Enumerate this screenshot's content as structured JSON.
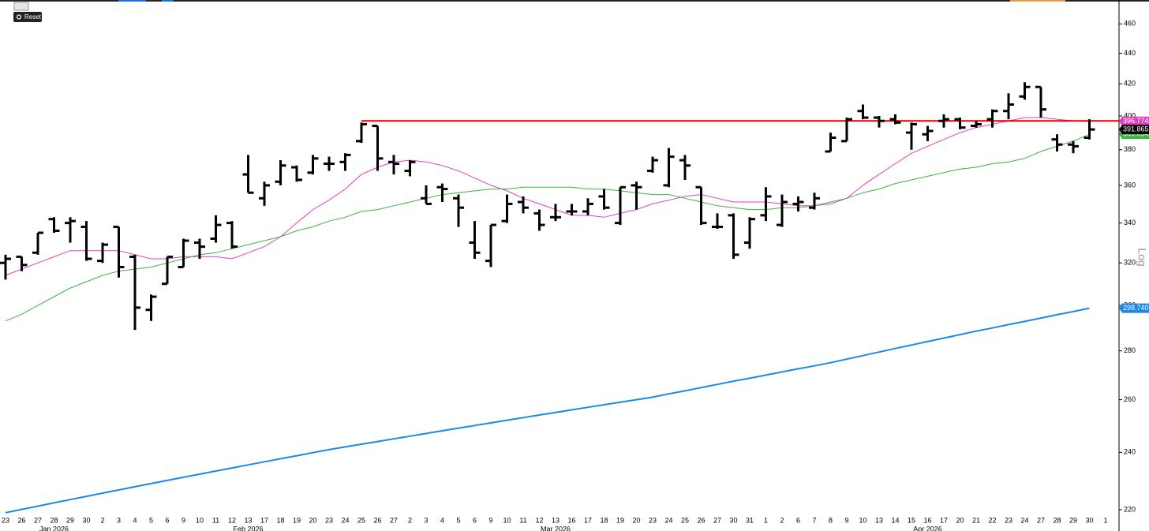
{
  "chart_data": {
    "type": "ohlc",
    "log_scale": true,
    "grid": false,
    "button": "Reset",
    "axis_note": "Log",
    "categories": [
      "23",
      "26",
      "27",
      "28",
      "29",
      "30",
      "2",
      "3",
      "4",
      "5",
      "6",
      "9",
      "10",
      "11",
      "12",
      "13",
      "17",
      "18",
      "19",
      "20",
      "23",
      "24",
      "25",
      "26",
      "27",
      "2",
      "3",
      "4",
      "5",
      "6",
      "9",
      "10",
      "11",
      "12",
      "13",
      "16",
      "17",
      "18",
      "19",
      "20",
      "23",
      "24",
      "25",
      "26",
      "27",
      "30",
      "31",
      "1",
      "2",
      "6",
      "7",
      "8",
      "9",
      "10",
      "13",
      "14",
      "15",
      "16",
      "17",
      "20",
      "21",
      "22",
      "23",
      "24",
      "27",
      "28",
      "29",
      "30",
      "1"
    ],
    "months": [
      {
        "label": "Jan 2026",
        "index": 3
      },
      {
        "label": "Feb 2026",
        "index": 15
      },
      {
        "label": "Mar 2026",
        "index": 34
      },
      {
        "label": "Apr 2026",
        "index": 57
      }
    ],
    "ylim": [
      213,
      477
    ],
    "yticks": [
      220,
      240,
      260,
      280,
      300,
      320,
      340,
      360,
      380,
      400,
      420,
      440,
      460
    ],
    "ohlc": {
      "color": "#000000",
      "open": [
        320,
        323,
        325,
        342,
        340,
        338,
        321,
        338,
        323,
        298,
        310,
        318,
        330,
        332,
        340,
        366,
        353,
        362,
        370,
        367,
        372,
        373,
        385,
        394,
        373,
        368,
        353,
        359,
        353,
        330,
        321,
        341,
        351,
        345,
        343,
        346,
        346,
        354,
        340,
        360,
        368,
        360,
        374,
        359,
        338,
        344,
        330,
        344,
        339,
        350,
        348,
        379,
        385,
        403,
        399,
        398,
        390,
        389,
        397,
        398,
        394,
        398,
        403,
        412,
        418,
        386,
        383,
        387,
        null
      ],
      "high": [
        324,
        323,
        335,
        343,
        343,
        341,
        330,
        338,
        324,
        305,
        323,
        332,
        332,
        344,
        341,
        377,
        362,
        374,
        371,
        377,
        376,
        378,
        396,
        394,
        377,
        374,
        360,
        361,
        355,
        341,
        339,
        355,
        354,
        347,
        350,
        350,
        353,
        358,
        359,
        362,
        376,
        381,
        377,
        359,
        345,
        345,
        343,
        359,
        355,
        354,
        356,
        390,
        399,
        407,
        400,
        401,
        396,
        394,
        401,
        399,
        397,
        404,
        414,
        421,
        418,
        389,
        385,
        398,
        null
      ],
      "low": [
        312,
        316,
        324,
        335,
        330,
        321,
        320,
        313,
        289,
        293,
        310,
        318,
        322,
        330,
        327,
        356,
        349,
        360,
        362,
        366,
        368,
        368,
        384,
        368,
        366,
        365,
        350,
        351,
        338,
        322,
        318,
        340,
        345,
        336,
        341,
        344,
        344,
        347,
        339,
        347,
        367,
        359,
        363,
        339,
        337,
        322,
        327,
        341,
        338,
        346,
        347,
        379,
        385,
        398,
        393,
        395,
        380,
        385,
        393,
        392,
        393,
        393,
        398,
        410,
        399,
        379,
        378,
        386,
        null
      ],
      "close": [
        322,
        319,
        335,
        336,
        341,
        322,
        329,
        318,
        299,
        304,
        323,
        331,
        328,
        339,
        328,
        356,
        360,
        371,
        363,
        375,
        372,
        377,
        395,
        375,
        372,
        373,
        350,
        358,
        348,
        325,
        339,
        350,
        348,
        339,
        343,
        346,
        350,
        348,
        359,
        359,
        374,
        376,
        371,
        340,
        338,
        324,
        342,
        354,
        351,
        351,
        353,
        387,
        398,
        399,
        397,
        396,
        395,
        391,
        398,
        393,
        395,
        403,
        407,
        418,
        404,
        383,
        382,
        391.865,
        null
      ],
      "last_label": "391.865"
    },
    "series": [
      {
        "name": "MA short",
        "color": "#e040c0",
        "width": 1,
        "last_label": "396.774",
        "values": [
          314,
          317,
          320,
          323,
          326,
          326,
          326,
          326,
          324,
          322,
          322,
          323,
          323,
          323,
          322,
          325,
          328,
          333,
          340,
          347,
          352,
          358,
          366,
          370,
          373,
          374,
          373,
          371,
          368,
          364,
          360,
          357,
          353,
          350,
          347,
          344,
          344,
          343,
          345,
          347,
          350,
          352,
          354,
          355,
          353,
          351,
          351,
          351,
          350,
          349,
          349,
          350,
          353,
          360,
          366,
          372,
          378,
          382,
          386,
          390,
          393,
          395,
          397,
          399,
          399,
          398,
          397,
          396.774,
          null
        ]
      },
      {
        "name": "MA mid",
        "color": "#3cb43c",
        "width": 1,
        "last_label": "389.034",
        "values": [
          293,
          296,
          300,
          304,
          308,
          311,
          314,
          316,
          317,
          318,
          320,
          322,
          324,
          325,
          327,
          329,
          331,
          333,
          336,
          338,
          341,
          343,
          346,
          347,
          349,
          351,
          353,
          355,
          356,
          357,
          358,
          358,
          359,
          359,
          359,
          359,
          358,
          358,
          357,
          356,
          355,
          355,
          353,
          351,
          349,
          348,
          347,
          347,
          348,
          348,
          349,
          351,
          353,
          356,
          358,
          361,
          363,
          365,
          367,
          369,
          370,
          372,
          373,
          375,
          379,
          382,
          385,
          389.034,
          null
        ]
      },
      {
        "name": "MA long",
        "color": "#1e88e5",
        "width": 2,
        "last_label": "298.7402",
        "values": [
          219,
          220.1,
          221.2,
          222.3,
          223.4,
          224.5,
          225.6,
          226.7,
          227.8,
          228.9,
          230,
          231.1,
          232.2,
          233.3,
          234.4,
          235.5,
          236.6,
          237.7,
          238.8,
          239.9,
          241,
          242,
          243,
          244,
          245,
          246,
          247,
          248,
          249,
          250,
          251,
          252,
          253,
          254,
          255,
          256,
          257,
          258,
          259,
          260,
          261,
          262.3,
          263.5,
          264.8,
          266.1,
          267.4,
          268.6,
          269.9,
          271.2,
          272.5,
          273.7,
          275,
          276.5,
          278,
          279.5,
          281,
          282.5,
          284,
          285.5,
          287,
          288.5,
          289.9,
          291.4,
          292.8,
          294.3,
          295.8,
          297.2,
          298.7402,
          null
        ]
      }
    ],
    "hline": {
      "value": 397,
      "color": "#e00000",
      "start_index": 22
    }
  }
}
